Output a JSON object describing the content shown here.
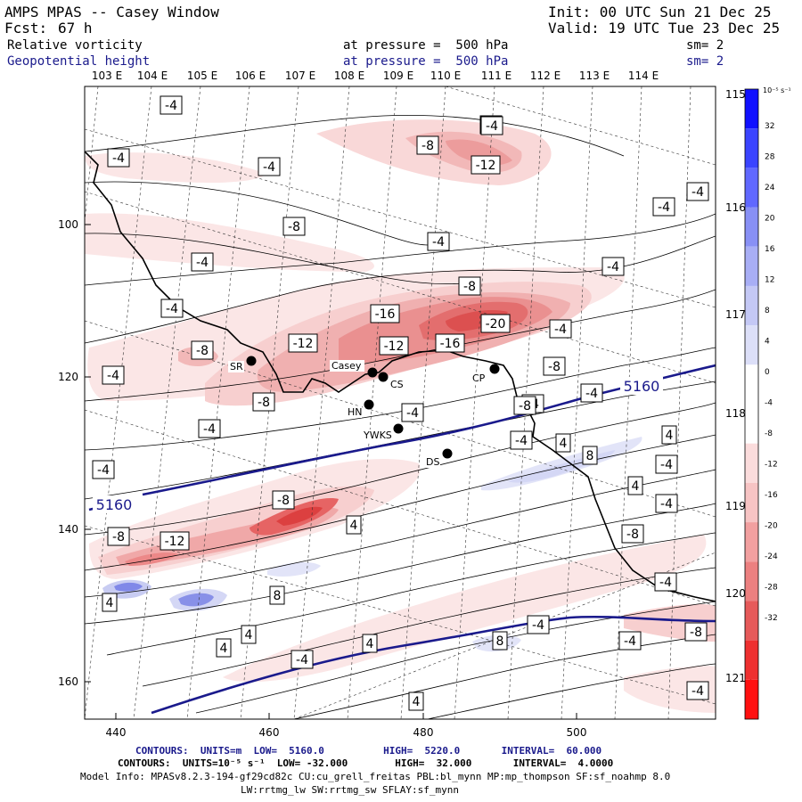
{
  "header": {
    "title": "AMPS MPAS -- Casey Window",
    "init": "Init: 00 UTC Sun 21 Dec 25",
    "fcst_label": "Fcst:",
    "fcst_value": "67 h",
    "valid": "Valid: 19 UTC Tue 23 Dec 25",
    "field1_name": "Relative vorticity",
    "field1_pressure": "at pressure =  500 hPa",
    "field1_sm": "sm= 2",
    "field2_name": "Geopotential height",
    "field2_pressure": "at pressure =  500 hPa",
    "field2_sm": "sm= 2"
  },
  "colors": {
    "navy": "#1a1a8c",
    "contour": "#000000",
    "coast": "#000000",
    "neg_strong": "#ff2020",
    "pos_strong": "#2030ff"
  },
  "map": {
    "x_ticks": [
      "440",
      "460",
      "480",
      "500"
    ],
    "y_ticks": [
      "100",
      "120",
      "140",
      "160"
    ],
    "lon_top": [
      "103 E",
      "104 E",
      "105 E",
      "106 E",
      "107 E",
      "108 E",
      "109 E",
      "110 E",
      "111 E",
      "112 E",
      "113 E",
      "114 E"
    ],
    "lon_right": [
      "115 E",
      "116 E",
      "117 E",
      "118 E",
      "119 E",
      "120 E",
      "121 E"
    ],
    "stations": [
      {
        "name": "SR"
      },
      {
        "name": "Casey"
      },
      {
        "name": "CS"
      },
      {
        "name": "CP"
      },
      {
        "name": "HN"
      },
      {
        "name": "YWKS"
      },
      {
        "name": "DS"
      }
    ],
    "height_labels": [
      "5160",
      "5160"
    ],
    "vort_labels": [
      "-4",
      "-4",
      "-4",
      "-8",
      "-12",
      "-8",
      "-4",
      "-4",
      "-8",
      "-4",
      "-4",
      "-16",
      "-8",
      "-20",
      "-12",
      "-12",
      "-16",
      "-4",
      "-8",
      "-4",
      "-4",
      "-4",
      "-8",
      "-4",
      "-4",
      "-4",
      "-8",
      "-4",
      "-4",
      "-4",
      "-8",
      "-12",
      "-8",
      "-8",
      "4",
      "8",
      "4",
      "8",
      "-4",
      "4",
      "4",
      "-4",
      "4",
      "-4",
      "8",
      "-4",
      "4",
      "-4",
      "-8",
      "-4",
      "4",
      "4",
      "4",
      "-4",
      "-8",
      "8",
      "4",
      "-4"
    ]
  },
  "colorbar": {
    "unit": "10⁻⁵ s⁻¹",
    "ticks": [
      "32",
      "28",
      "24",
      "20",
      "16",
      "12",
      "8",
      "4",
      "0",
      "-4",
      "-8",
      "-12",
      "-16",
      "-20",
      "-24",
      "-28",
      "-32"
    ]
  },
  "footer": {
    "line1": "CONTOURS:  UNITS=m  LOW=  5160.0          HIGH=  5220.0       INTERVAL=  60.000",
    "line2": "CONTOURS:  UNITS=10⁻⁵ s⁻¹  LOW= -32.000        HIGH=  32.000       INTERVAL=  4.0000",
    "line3": "Model Info: MPASv8.2.3-194-gf29cd82c CU:cu_grell_freitas PBL:bl_mynn MP:mp_thompson SF:sf_noahmp 8.0",
    "line4": "LW:rrtmg_lw SW:rrtmg_sw SFLAY:sf_mynn"
  }
}
